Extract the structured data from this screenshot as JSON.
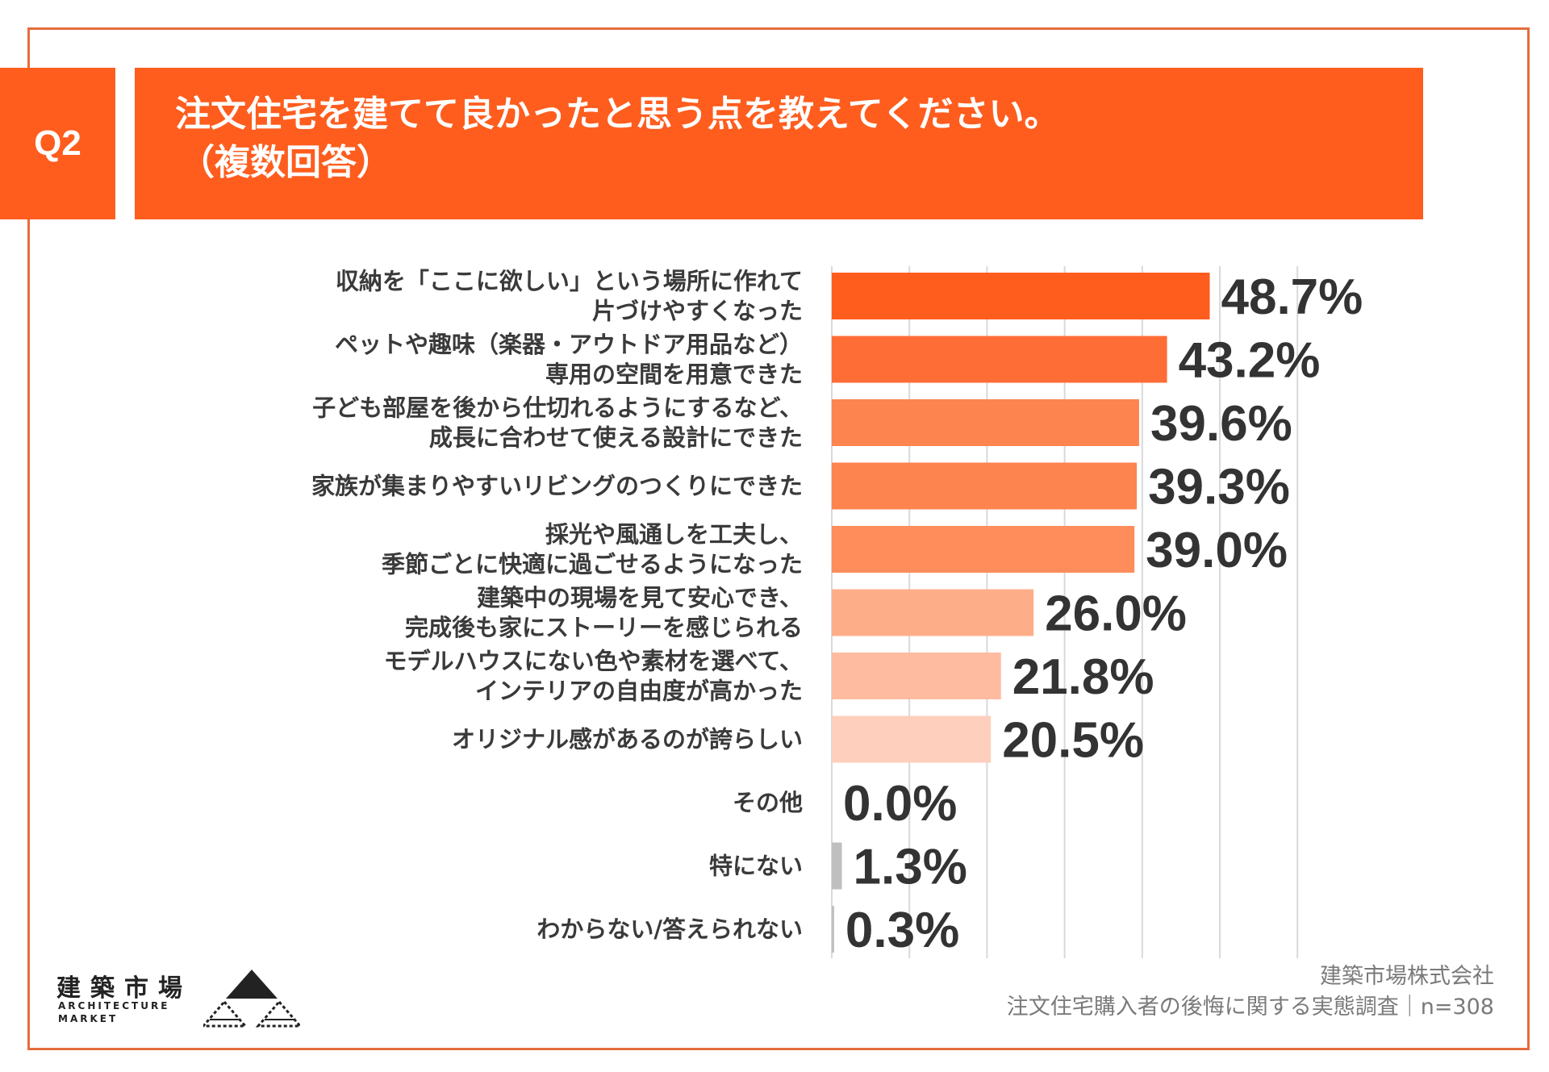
{
  "header": {
    "badge": "Q2",
    "title": "注文住宅を建てて良かったと思う点を教えてください。",
    "subtitle": "（複数回答）"
  },
  "colors": {
    "accent": "#fe5d1e",
    "frame": "#e46d3e",
    "grid": "#d9d9d9",
    "gray_bar": "#bfbfbf"
  },
  "chart_data": {
    "type": "bar",
    "orientation": "horizontal",
    "title": "注文住宅を建てて良かったと思う点を教えてください。（複数回答）",
    "xlim": [
      0,
      60
    ],
    "grid": true,
    "categories": [
      [
        "収納を「ここに欲しい」という場所に作れて",
        "片づけやすくなった"
      ],
      [
        "ペットや趣味（楽器・アウトドア用品など）",
        "専用の空間を用意できた"
      ],
      [
        "子ども部屋を後から仕切れるようにするなど、",
        "成長に合わせて使える設計にできた"
      ],
      [
        "家族が集まりやすいリビングのつくりにできた"
      ],
      [
        "採光や風通しを工夫し、",
        "季節ごとに快適に過ごせるようになった"
      ],
      [
        "建築中の現場を見て安心でき、",
        "完成後も家にストーリーを感じられる"
      ],
      [
        "モデルハウスにない色や素材を選べて、",
        "インテリアの自由度が高かった"
      ],
      [
        "オリジナル感があるのが誇らしい"
      ],
      [
        "その他"
      ],
      [
        "特にない"
      ],
      [
        "わからない/答えられない"
      ]
    ],
    "values": [
      48.7,
      43.2,
      39.6,
      39.3,
      39.0,
      26.0,
      21.8,
      20.5,
      0.0,
      1.3,
      0.3
    ],
    "value_labels": [
      "48.7%",
      "43.2%",
      "39.6%",
      "39.3%",
      "39.0%",
      "26.0%",
      "21.8%",
      "20.5%",
      "0.0%",
      "1.3%",
      "0.3%"
    ],
    "bar_colors": [
      "#fe5d1e",
      "#fe6d35",
      "#fe844f",
      "#fe844f",
      "#fe8d5b",
      "#fead89",
      "#febba0",
      "#fecfbd",
      "#fecfbd",
      "#bfbfbf",
      "#bfbfbf"
    ]
  },
  "footer": {
    "logo": {
      "name": "建築市場",
      "en_line1": "ARCHITECTURE",
      "en_line2": "MARKET"
    },
    "source_company": "建築市場株式会社",
    "source_survey": "注文住宅購入者の後悔に関する実態調査｜n=308"
  }
}
